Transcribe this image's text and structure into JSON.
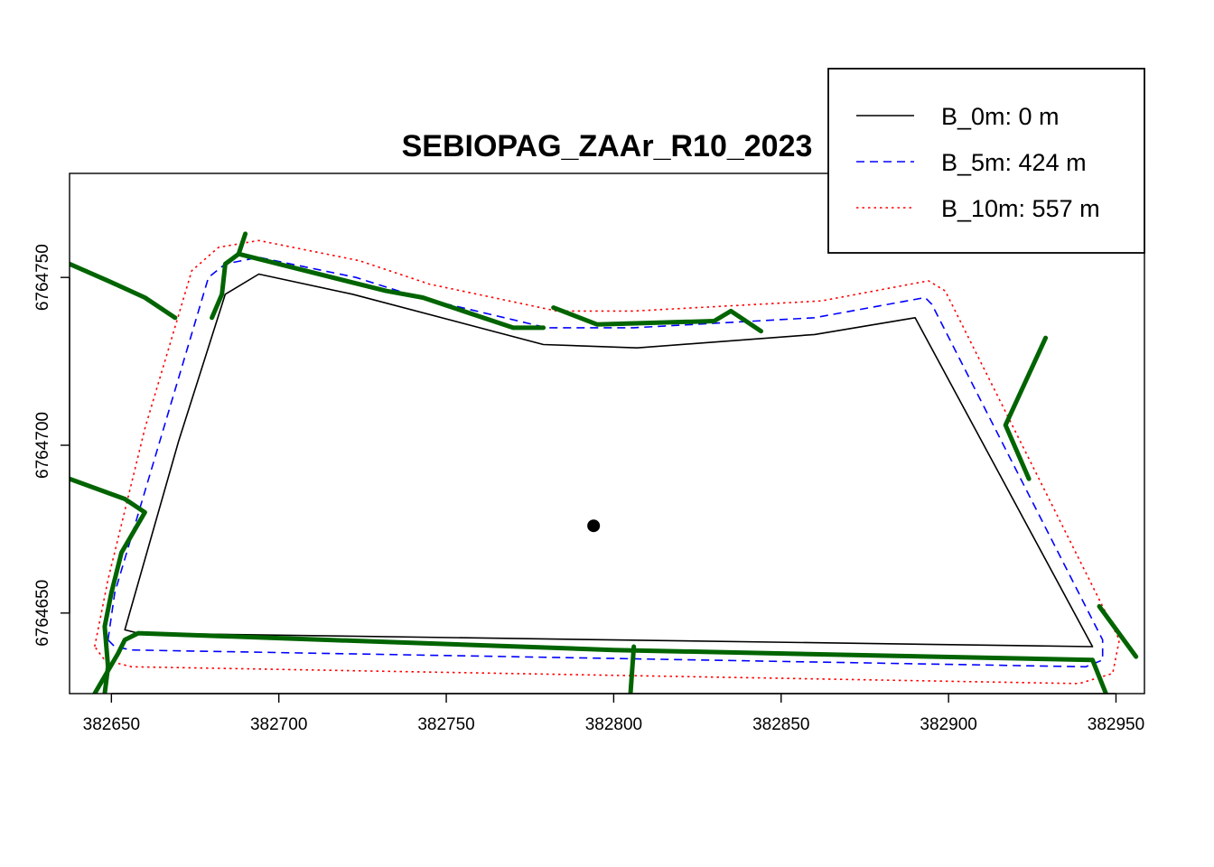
{
  "chart_data": {
    "type": "line",
    "title": "SEBIOPAG_ZAAr_R10_2023",
    "xlabel": "",
    "ylabel": "",
    "xlim": [
      382637.5,
      382958.5
    ],
    "ylim": [
      6764626,
      6764781
    ],
    "x_ticks": [
      382650,
      382700,
      382750,
      382800,
      382850,
      382900,
      382950
    ],
    "y_ticks": [
      6764650,
      6764700,
      6764750
    ],
    "x_tick_labels": [
      "382650",
      "382700",
      "382750",
      "382800",
      "382850",
      "382900",
      "382950"
    ],
    "y_tick_labels": [
      "6764650",
      "6764700",
      "6764750"
    ],
    "grid": false,
    "legend": {
      "position": "top-right",
      "entries": [
        {
          "label": "B_0m: 0 m",
          "color": "#000000",
          "dash": "solid"
        },
        {
          "label": "B_5m: 424 m",
          "color": "#0000ff",
          "dash": "dashed"
        },
        {
          "label": "B_10m: 557 m",
          "color": "#ff0000",
          "dash": "dotted"
        }
      ]
    },
    "series": [
      {
        "name": "B_0m: 0 m",
        "color": "#000000",
        "dash": "solid",
        "closed": true,
        "points": [
          [
            382654,
            6764645
          ],
          [
            382670,
            6764701
          ],
          [
            382684,
            6764745
          ],
          [
            382694,
            6764751
          ],
          [
            382722,
            6764745
          ],
          [
            382779,
            6764730
          ],
          [
            382807,
            6764729
          ],
          [
            382860,
            6764733
          ],
          [
            382890,
            6764738
          ],
          [
            382943,
            6764640
          ],
          [
            382658,
            6764644
          ]
        ]
      },
      {
        "name": "B_5m: 424 m",
        "color": "#0000ff",
        "dash": "dashed",
        "closed": true,
        "points": [
          [
            382649,
            6764642
          ],
          [
            382651,
            6764656
          ],
          [
            382665,
            6764703
          ],
          [
            382679,
            6764750
          ],
          [
            382684,
            6764754
          ],
          [
            382694,
            6764756
          ],
          [
            382723,
            6764750
          ],
          [
            382742,
            6764744
          ],
          [
            382780,
            6764735
          ],
          [
            382806,
            6764735
          ],
          [
            382860,
            6764738
          ],
          [
            382893,
            6764744
          ],
          [
            382895,
            6764742
          ],
          [
            382946,
            6764642
          ],
          [
            382946,
            6764636
          ],
          [
            382941,
            6764634
          ],
          [
            382656,
            6764639
          ],
          [
            382651,
            6764640
          ]
        ]
      },
      {
        "name": "B_10m: 557 m",
        "color": "#ff0000",
        "dash": "dotted",
        "closed": true,
        "points": [
          [
            382645,
            6764640
          ],
          [
            382649,
            6764660
          ],
          [
            382660,
            6764705
          ],
          [
            382674,
            6764752
          ],
          [
            382682,
            6764759
          ],
          [
            382694,
            6764761
          ],
          [
            382724,
            6764755
          ],
          [
            382745,
            6764748
          ],
          [
            382783,
            6764740
          ],
          [
            382806,
            6764740
          ],
          [
            382862,
            6764743
          ],
          [
            382894,
            6764749
          ],
          [
            382899,
            6764746
          ],
          [
            382951,
            6764642
          ],
          [
            382949,
            6764632
          ],
          [
            382939,
            6764629
          ],
          [
            382656,
            6764634
          ],
          [
            382648,
            6764636
          ]
        ]
      },
      {
        "name": "",
        "color": "#006400",
        "dash": "solid",
        "segments": [
          [
            [
              382637.5,
              6764754
            ],
            [
              382649,
              6764749
            ],
            [
              382660,
              6764744
            ],
            [
              382669,
              6764738
            ]
          ],
          [
            [
              382637.5,
              6764690
            ],
            [
              382654,
              6764684
            ],
            [
              382660,
              6764680
            ],
            [
              382653,
              6764668
            ],
            [
              382650,
              6764656
            ],
            [
              382648,
              6764646
            ],
            [
              382649,
              6764634
            ],
            [
              382648,
              6764626
            ]
          ],
          [
            [
              382645,
              6764626
            ],
            [
              382652,
              6764638
            ],
            [
              382654,
              6764642
            ],
            [
              382658,
              6764644
            ],
            [
              382800,
              6764639
            ],
            [
              382943,
              6764636
            ],
            [
              382947,
              6764626
            ]
          ],
          [
            [
              382806,
              6764640
            ],
            [
              382805,
              6764626
            ]
          ],
          [
            [
              382680,
              6764738
            ],
            [
              382683,
              6764745
            ],
            [
              382684,
              6764754
            ],
            [
              382688,
              6764757
            ],
            [
              382732,
              6764746
            ],
            [
              382743,
              6764744
            ],
            [
              382770,
              6764735
            ],
            [
              382779,
              6764735
            ]
          ],
          [
            [
              382688,
              6764757
            ],
            [
              382690,
              6764763
            ]
          ],
          [
            [
              382782,
              6764741
            ],
            [
              382795,
              6764736
            ],
            [
              382830,
              6764737
            ],
            [
              382835,
              6764740
            ],
            [
              382844,
              6764734
            ]
          ],
          [
            [
              382929,
              6764732
            ],
            [
              382917,
              6764706
            ],
            [
              382924,
              6764690
            ]
          ],
          [
            [
              382945,
              6764652
            ],
            [
              382956,
              6764637
            ]
          ]
        ]
      },
      {
        "name": "",
        "type": "scatter",
        "color": "#000000",
        "points": [
          [
            382794,
            6764676
          ]
        ]
      }
    ]
  }
}
